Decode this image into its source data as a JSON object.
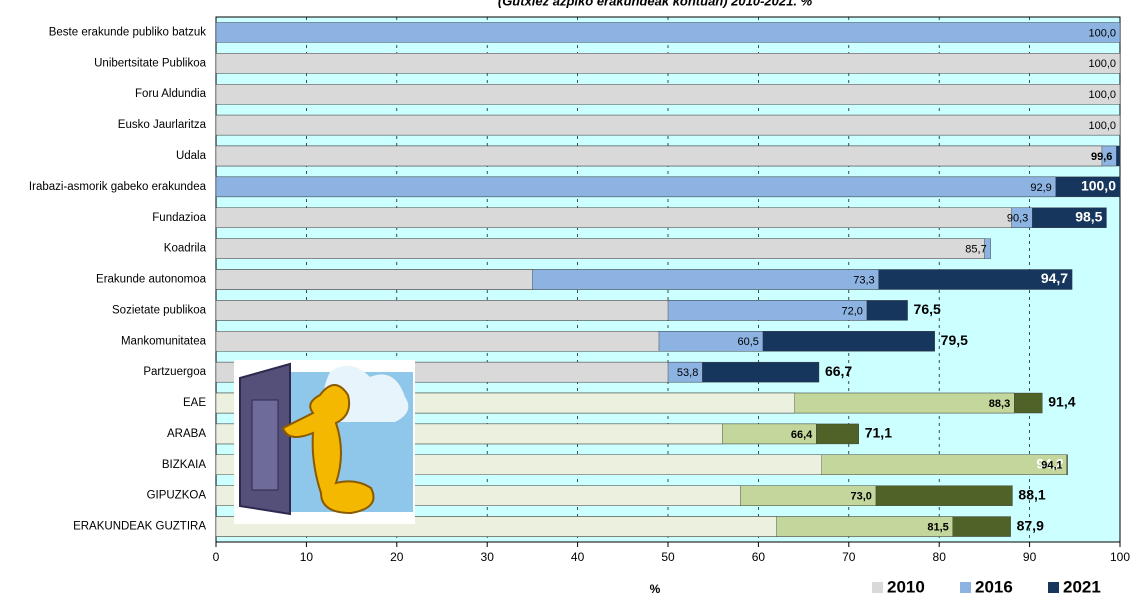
{
  "chart_data": {
    "type": "bar",
    "orientation": "horizontal",
    "title": "(Gutxiez azpiko erakundeak kontuan) 2010-2021. %",
    "x_label": "%",
    "categories": [
      "Beste erakunde publiko batzuk",
      "Unibertsitate Publikoa",
      "Foru Aldundia",
      "Eusko Jaurlaritza",
      "Udala",
      "Irabazi-asmorik gabeko erakundea",
      "Fundazioa",
      "Koadrila",
      "Erakunde autonomoa",
      "Sozietate publikoa",
      "Mankomunitatea",
      "Partzuergoa",
      "EAE",
      "ARABA",
      "BIZKAIA",
      "GIPUZKOA",
      "ERAKUNDEAK GUZTIRA"
    ],
    "series": [
      {
        "name": "2021",
        "color": "#17365d",
        "colors": [
          "#17365d",
          "#17365d",
          "#17365d",
          "#17365d",
          "#17365d",
          "#17365d",
          "#17365d",
          "#17365d",
          "#17365d",
          "#17365d",
          "#17365d",
          "#17365d",
          "#4f6228",
          "#4f6228",
          "#4f6228",
          "#4f6228",
          "#4f6228"
        ],
        "values": [
          null,
          null,
          null,
          null,
          100,
          100,
          98.5,
          null,
          94.7,
          76.5,
          79.5,
          66.7,
          91.4,
          71.1,
          94.2,
          88.1,
          87.9
        ],
        "value_labels": [
          null,
          null,
          null,
          null,
          null,
          "100,0",
          "98,5",
          null,
          "94,7",
          "76,5",
          "79,5",
          "66,7",
          "91,4",
          "71,1",
          "94,2",
          "88,1",
          "87,9"
        ]
      },
      {
        "name": "2016",
        "color": "#8db3e2",
        "colors": [
          "#8db3e2",
          "#8db3e2",
          "#8db3e2",
          "#8db3e2",
          "#8db3e2",
          "#8db3e2",
          "#8db3e2",
          "#8db3e2",
          "#8db3e2",
          "#8db3e2",
          "#8db3e2",
          "#8db3e2",
          "#c3d69b",
          "#c3d69b",
          "#c3d69b",
          "#c3d69b",
          "#c3d69b"
        ],
        "values": [
          100,
          100,
          100,
          100,
          99.6,
          92.9,
          90.3,
          85.7,
          73.3,
          72.0,
          60.5,
          53.8,
          88.3,
          66.4,
          94.1,
          73.0,
          81.5
        ],
        "value_labels": [
          "100,0",
          "100,0",
          "100,0",
          "100,0",
          "99,6",
          "92,9",
          "90,3",
          "85,7",
          "73,3",
          "72,0",
          "60,5",
          "53,8",
          "88,3",
          "66,4",
          "94,1",
          "73,0",
          "81,5"
        ]
      },
      {
        "name": "2010",
        "color": "#d9d9d9",
        "colors": [
          "#d9d9d9",
          "#d9d9d9",
          "#d9d9d9",
          "#d9d9d9",
          "#d9d9d9",
          "#8db3e2",
          "#d9d9d9",
          "#d9d9d9",
          "#d9d9d9",
          "#d9d9d9",
          "#d9d9d9",
          "#d9d9d9",
          "#ebf1de",
          "#ebf1de",
          "#ebf1de",
          "#ebf1de",
          "#ebf1de"
        ],
        "values": [
          null,
          100,
          100,
          100,
          98,
          null,
          88,
          85,
          35,
          50,
          49,
          50,
          64,
          56,
          67,
          58,
          62
        ]
      }
    ],
    "xlim": [
      0,
      100
    ],
    "xticks": [
      0,
      10,
      20,
      30,
      40,
      50,
      60,
      70,
      80,
      90,
      100
    ],
    "grid": true
  }
}
